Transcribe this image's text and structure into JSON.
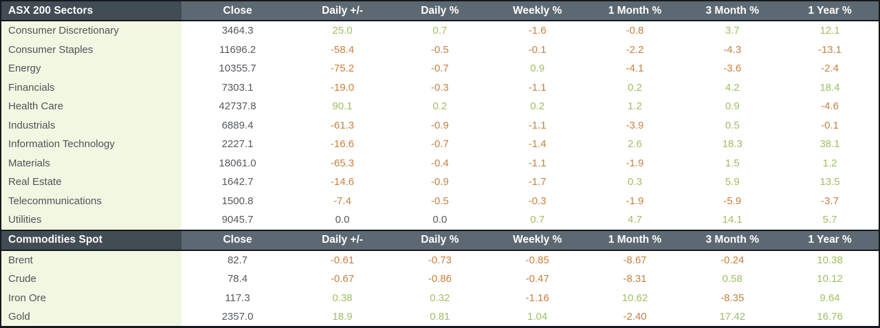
{
  "colors": {
    "positive": "#9fbe5f",
    "negative": "#c7803d",
    "neutral": "#54585c",
    "header_bg": "#5d6972",
    "header_title_bg": "#414c55",
    "label_column_bg": "#f2f7e2",
    "label_text": "#4d5458",
    "header_text": "#ffffff",
    "border": "#15191d",
    "body_bg": "#ffffff"
  },
  "chart_data": [
    {
      "type": "table",
      "title": "ASX 200 Sectors",
      "columns": [
        "Close",
        "Daily +/-",
        "Daily %",
        "Weekly %",
        "1 Month %",
        "3 Month %",
        "1 Year %"
      ],
      "rows": [
        {
          "label": "Consumer Discretionary",
          "values": [
            "3464.3",
            "25.0",
            "0.7",
            "-1.6",
            "-0.8",
            "3.7",
            "12.1"
          ]
        },
        {
          "label": "Consumer Staples",
          "values": [
            "11696.2",
            "-58.4",
            "-0.5",
            "-0.1",
            "-2.2",
            "-4.3",
            "-13.1"
          ]
        },
        {
          "label": "Energy",
          "values": [
            "10355.7",
            "-75.2",
            "-0.7",
            "0.9",
            "-4.1",
            "-3.6",
            "-2.4"
          ]
        },
        {
          "label": "Financials",
          "values": [
            "7303.1",
            "-19.0",
            "-0.3",
            "-1.1",
            "0.2",
            "4.2",
            "18.4"
          ]
        },
        {
          "label": "Health Care",
          "values": [
            "42737.8",
            "90.1",
            "0.2",
            "0.2",
            "1.2",
            "0.9",
            "-4.6"
          ]
        },
        {
          "label": "Industrials",
          "values": [
            "6889.4",
            "-61.3",
            "-0.9",
            "-1.1",
            "-3.9",
            "0.5",
            "-0.1"
          ]
        },
        {
          "label": "Information Technology",
          "values": [
            "2227.1",
            "-16.6",
            "-0.7",
            "-1.4",
            "2.6",
            "18.3",
            "38.1"
          ]
        },
        {
          "label": "Materials",
          "values": [
            "18061.0",
            "-65.3",
            "-0.4",
            "-1.1",
            "-1.9",
            "1.5",
            "1.2"
          ]
        },
        {
          "label": "Real Estate",
          "values": [
            "1642.7",
            "-14.6",
            "-0.9",
            "-1.7",
            "0.3",
            "5.9",
            "13.5"
          ]
        },
        {
          "label": "Telecommunications",
          "values": [
            "1500.8",
            "-7.4",
            "-0.5",
            "-0.3",
            "-1.9",
            "-5.9",
            "-3.7"
          ]
        },
        {
          "label": "Utilities",
          "values": [
            "9045.7",
            "0.0",
            "0.0",
            "0.7",
            "4.7",
            "14.1",
            "5.7"
          ]
        }
      ]
    },
    {
      "type": "table",
      "title": "Commodities Spot",
      "columns": [
        "Close",
        "Daily +/-",
        "Daily %",
        "Weekly %",
        "1 Month %",
        "3 Month %",
        "1 Year %"
      ],
      "rows": [
        {
          "label": "Brent",
          "values": [
            "82.7",
            "-0.61",
            "-0.73",
            "-0.85",
            "-8.67",
            "-0.24",
            "10.38"
          ]
        },
        {
          "label": "Crude",
          "values": [
            "78.4",
            "-0.67",
            "-0.86",
            "-0.47",
            "-8.31",
            "0.58",
            "10.12"
          ]
        },
        {
          "label": "Iron Ore",
          "values": [
            "117.3",
            "0.38",
            "0.32",
            "-1.16",
            "10.62",
            "-8.35",
            "9.64"
          ]
        },
        {
          "label": "Gold",
          "values": [
            "2357.0",
            "18.9",
            "0.81",
            "1.04",
            "-2.40",
            "17.42",
            "16.76"
          ]
        }
      ]
    }
  ]
}
